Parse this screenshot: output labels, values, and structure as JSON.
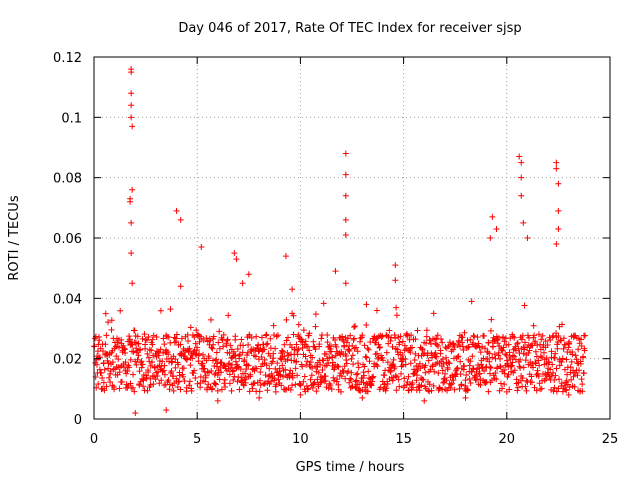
{
  "chart_data": {
    "type": "scatter",
    "title": "Day 046 of 2017, Rate Of TEC Index for receiver sjsp",
    "xlabel": "GPS time / hours",
    "ylabel": "ROTI / TECUs",
    "xlim": [
      0,
      25
    ],
    "ylim": [
      0,
      0.12
    ],
    "x_ticks": [
      "0",
      "5",
      "10",
      "15",
      "20",
      "25"
    ],
    "y_ticks": [
      "0",
      "0.02",
      "0.04",
      "0.06",
      "0.08",
      "0.1",
      "0.12"
    ],
    "grid": true,
    "marker": "plus",
    "color": "#ff0000",
    "approx_x_range_of_data": [
      0,
      23.8
    ],
    "baseline_band": [
      0.005,
      0.03
    ],
    "series": [
      {
        "x": [
          1.8,
          1.8,
          1.8,
          1.8,
          1.8,
          1.85,
          1.85,
          1.75,
          1.75,
          1.8,
          1.8,
          1.85,
          4.0,
          4.2,
          4.2,
          5.2,
          6.8,
          6.9,
          7.2,
          7.5,
          9.3,
          9.6,
          9.6,
          11.7,
          12.2,
          12.2,
          12.2,
          12.2,
          12.2,
          12.2,
          13.2,
          14.6,
          14.6,
          19.2,
          19.3,
          19.5,
          20.6,
          20.7,
          20.7,
          20.7,
          20.8,
          21.0,
          22.4,
          22.4,
          22.5,
          22.5,
          22.5,
          22.4,
          2.0,
          3.5,
          6.0,
          8.0,
          10.0,
          13.0,
          16.0,
          18.0,
          20.0,
          23.0
        ],
        "y": [
          0.116,
          0.115,
          0.108,
          0.104,
          0.1,
          0.097,
          0.076,
          0.073,
          0.072,
          0.065,
          0.055,
          0.045,
          0.069,
          0.066,
          0.044,
          0.057,
          0.055,
          0.053,
          0.045,
          0.048,
          0.054,
          0.043,
          0.035,
          0.049,
          0.088,
          0.081,
          0.074,
          0.066,
          0.061,
          0.045,
          0.038,
          0.051,
          0.046,
          0.06,
          0.067,
          0.063,
          0.087,
          0.085,
          0.08,
          0.074,
          0.065,
          0.06,
          0.085,
          0.083,
          0.078,
          0.069,
          0.063,
          0.058,
          0.002,
          0.003,
          0.006,
          0.007,
          0.008,
          0.007,
          0.006,
          0.007,
          0.009,
          0.008
        ]
      }
    ]
  }
}
